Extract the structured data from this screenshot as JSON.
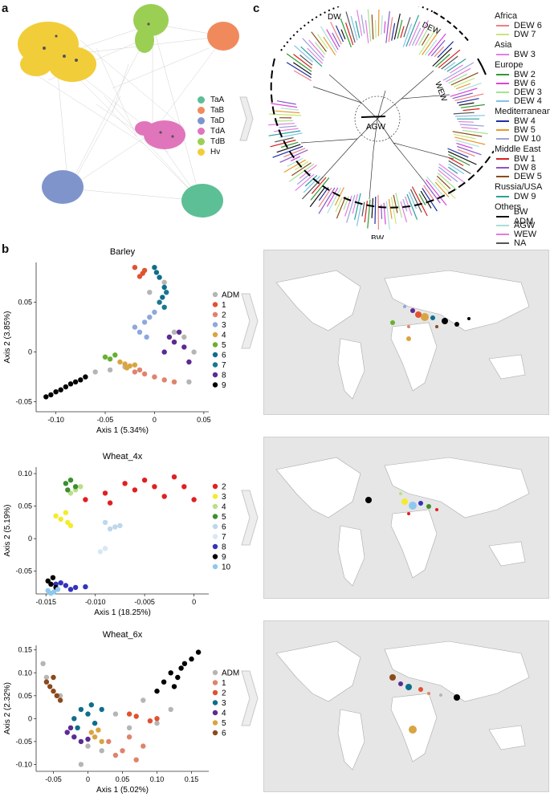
{
  "panel_labels": {
    "a": "a",
    "b": "b",
    "c": "c"
  },
  "network": {
    "legend": [
      {
        "label": "TaA",
        "color": "#5cbf95"
      },
      {
        "label": "TaB",
        "color": "#f08a5d"
      },
      {
        "label": "TaD",
        "color": "#8094cc"
      },
      {
        "label": "TdA",
        "color": "#e075bc"
      },
      {
        "label": "TdB",
        "color": "#9bcf54"
      },
      {
        "label": "Hv",
        "color": "#f2cd3a"
      }
    ]
  },
  "tree": {
    "arc_labels": {
      "dw": "DW",
      "dew": "DEW",
      "wew": "WEW",
      "agw": "AGW",
      "bw": "BW"
    },
    "legend_groups": [
      {
        "region": "Africa",
        "items": [
          {
            "label": "DEW 6",
            "color": "#f08080"
          },
          {
            "label": "DW 7",
            "color": "#c8e67a"
          }
        ]
      },
      {
        "region": "Asia",
        "items": [
          {
            "label": "BW 3",
            "color": "#e27fe8"
          }
        ]
      },
      {
        "region": "Europe",
        "items": [
          {
            "label": "BW 2",
            "color": "#2f9a2f"
          },
          {
            "label": "BW 6",
            "color": "#d946d9"
          },
          {
            "label": "DEW 3",
            "color": "#a5e38f"
          },
          {
            "label": "DEW 4",
            "color": "#7ec4e8"
          }
        ]
      },
      {
        "region": "Mediterranean",
        "items": [
          {
            "label": "BW 4",
            "color": "#1f2fa0"
          },
          {
            "label": "BW 5",
            "color": "#e89a2c"
          },
          {
            "label": "DW 10",
            "color": "#9ba3d6"
          }
        ]
      },
      {
        "region": "Middle East",
        "items": [
          {
            "label": "BW 1",
            "color": "#d62020"
          },
          {
            "label": "DW 8",
            "color": "#8a55c8"
          },
          {
            "label": "DEW 5",
            "color": "#8b4a1b"
          }
        ]
      },
      {
        "region": "Russia/USA",
        "items": [
          {
            "label": "DW 9",
            "color": "#2aa198"
          }
        ]
      },
      {
        "region": "Others",
        "items": [
          {
            "label": "BW ADM",
            "color": "#111111"
          },
          {
            "label": "AGW",
            "color": "#a8e0d8"
          },
          {
            "label": "WEW",
            "color": "#e67ae0"
          },
          {
            "label": "NA",
            "color": "#555555"
          }
        ]
      }
    ]
  },
  "chart_data": [
    {
      "type": "scatter",
      "title": "Barley",
      "xlabel": "Axis 1 (5.34%)",
      "ylabel": "Axis 2 (3.85%)",
      "xlim": [
        -0.12,
        0.055
      ],
      "ylim": [
        -0.06,
        0.09
      ],
      "xticks": [
        "-0.10",
        "-0.05",
        "0",
        "0.05"
      ],
      "xtick_values": [
        -0.1,
        -0.05,
        0,
        0.05
      ],
      "yticks": [
        "-0.05",
        "0",
        "0.05"
      ],
      "ytick_values": [
        -0.05,
        0,
        0.05
      ],
      "series": [
        {
          "name": "ADM",
          "color": "#b5b5b5",
          "x": [
            -0.06,
            -0.045,
            -0.03,
            -0.005,
            0.01,
            0.02,
            0.03,
            0.035,
            0.04
          ],
          "y": [
            -0.02,
            -0.018,
            -0.015,
            0.06,
            0.07,
            0.02,
            0.015,
            -0.03,
            0.0
          ]
        },
        {
          "name": "1",
          "color": "#e0522f",
          "x": [
            -0.02,
            -0.01,
            -0.015,
            -0.012
          ],
          "y": [
            0.085,
            0.082,
            0.076,
            0.079
          ]
        },
        {
          "name": "2",
          "color": "#e0836b",
          "x": [
            -0.02,
            -0.01,
            0.0,
            0.01,
            0.02,
            -0.015
          ],
          "y": [
            -0.02,
            -0.022,
            -0.025,
            -0.028,
            -0.03,
            -0.018
          ]
        },
        {
          "name": "3",
          "color": "#8ea8de",
          "x": [
            -0.015,
            -0.01,
            -0.005,
            0.0,
            -0.02,
            -0.008
          ],
          "y": [
            0.02,
            0.03,
            0.035,
            0.04,
            0.025,
            0.015
          ]
        },
        {
          "name": "4",
          "color": "#d9a441",
          "x": [
            -0.03,
            -0.025,
            -0.02,
            -0.035,
            -0.028
          ],
          "y": [
            -0.012,
            -0.014,
            -0.013,
            -0.01,
            -0.016
          ]
        },
        {
          "name": "5",
          "color": "#68b030",
          "x": [
            -0.05,
            -0.045,
            -0.04
          ],
          "y": [
            -0.005,
            -0.007,
            -0.003
          ]
        },
        {
          "name": "6",
          "color": "#0e6e8c",
          "x": [
            0.0,
            0.005,
            0.01,
            0.008,
            0.002
          ],
          "y": [
            0.085,
            0.075,
            0.065,
            0.055,
            0.08
          ]
        },
        {
          "name": "7",
          "color": "#17798f",
          "x": [
            0.005,
            0.01,
            0.012
          ],
          "y": [
            0.05,
            0.045,
            0.06
          ]
        },
        {
          "name": "8",
          "color": "#5c2a92",
          "x": [
            0.01,
            0.02,
            0.025,
            0.03,
            0.035,
            0.015
          ],
          "y": [
            0.0,
            0.01,
            0.02,
            0.005,
            -0.01,
            0.015
          ]
        },
        {
          "name": "9",
          "color": "#000000",
          "x": [
            -0.11,
            -0.1,
            -0.09,
            -0.08,
            -0.07,
            -0.085,
            -0.095,
            -0.105,
            -0.075
          ],
          "y": [
            -0.045,
            -0.04,
            -0.035,
            -0.03,
            -0.025,
            -0.032,
            -0.038,
            -0.043,
            -0.028
          ]
        }
      ]
    },
    {
      "type": "scatter",
      "title": "Wheat_4x",
      "xlabel": "Axis 1 (18.25%)",
      "ylabel": "Axis 2 (5.19%)",
      "xlim": [
        -0.016,
        0.0015
      ],
      "ylim": [
        -0.085,
        0.11
      ],
      "xticks": [
        "-0.015",
        "-0.010",
        "-0.005",
        "0"
      ],
      "xtick_values": [
        -0.015,
        -0.01,
        -0.005,
        0
      ],
      "yticks": [
        "-0.05",
        "0",
        "0.05",
        "0.10"
      ],
      "ytick_values": [
        -0.05,
        0,
        0.05,
        0.1
      ],
      "series": [
        {
          "name": "2",
          "color": "#e02020",
          "x": [
            -0.011,
            -0.009,
            -0.007,
            -0.005,
            -0.004,
            -0.002,
            -0.001,
            0.0,
            -0.006,
            -0.003,
            -0.0085
          ],
          "y": [
            0.06,
            0.07,
            0.085,
            0.09,
            0.08,
            0.095,
            0.08,
            0.06,
            0.075,
            0.065,
            0.055
          ]
        },
        {
          "name": "3",
          "color": "#f5eb2a",
          "x": [
            -0.0135,
            -0.013,
            -0.0125,
            -0.014,
            -0.0128
          ],
          "y": [
            0.03,
            0.04,
            0.02,
            0.035,
            0.025
          ]
        },
        {
          "name": "4",
          "color": "#b9e08a",
          "x": [
            -0.012,
            -0.0115,
            -0.0125
          ],
          "y": [
            0.075,
            0.08,
            0.07
          ]
        },
        {
          "name": "5",
          "color": "#3c8f2f",
          "x": [
            -0.013,
            -0.0125,
            -0.012,
            -0.0128
          ],
          "y": [
            0.085,
            0.09,
            0.08,
            0.075
          ]
        },
        {
          "name": "6",
          "color": "#bdd7ec",
          "x": [
            -0.009,
            -0.0085,
            -0.008,
            -0.0075
          ],
          "y": [
            0.025,
            0.015,
            0.018,
            0.02
          ]
        },
        {
          "name": "7",
          "color": "#d7e8f5",
          "x": [
            -0.0095,
            -0.009
          ],
          "y": [
            -0.02,
            -0.015
          ]
        },
        {
          "name": "8",
          "color": "#3333bb",
          "x": [
            -0.014,
            -0.013,
            -0.012,
            -0.011,
            -0.0135,
            -0.0125
          ],
          "y": [
            -0.07,
            -0.072,
            -0.075,
            -0.074,
            -0.068,
            -0.078
          ]
        },
        {
          "name": "9",
          "color": "#000000",
          "x": [
            -0.0148,
            -0.0145,
            -0.014,
            -0.0143
          ],
          "y": [
            -0.065,
            -0.07,
            -0.075,
            -0.06
          ]
        },
        {
          "name": "10",
          "color": "#8ec8ef",
          "x": [
            -0.0148,
            -0.0142,
            -0.0138,
            -0.0145
          ],
          "y": [
            -0.08,
            -0.082,
            -0.078,
            -0.084
          ]
        }
      ]
    },
    {
      "type": "scatter",
      "title": "Wheat_6x",
      "xlabel": "Axis 1 (5.02%)",
      "ylabel": "Axis 2 (2.32%)",
      "xlim": [
        -0.075,
        0.175
      ],
      "ylim": [
        -0.115,
        0.16
      ],
      "xticks": [
        "-0.05",
        "0",
        "0.05",
        "0.10",
        "0.15"
      ],
      "xtick_values": [
        -0.05,
        0,
        0.05,
        0.1,
        0.15
      ],
      "yticks": [
        "-0.10",
        "-0.05",
        "0",
        "0.05",
        "0.10",
        "0.15"
      ],
      "ytick_values": [
        -0.1,
        -0.05,
        0,
        0.05,
        0.1,
        0.15
      ],
      "series": [
        {
          "name": "ADM",
          "color": "#b5b5b5",
          "x": [
            -0.065,
            -0.06,
            -0.04,
            0.0,
            0.04,
            0.06,
            0.08,
            0.1,
            0.12,
            -0.01,
            0.02
          ],
          "y": [
            0.12,
            0.09,
            0.05,
            -0.06,
            0.01,
            -0.02,
            0.04,
            -0.01,
            0.02,
            -0.1,
            -0.07
          ]
        },
        {
          "name": "1",
          "color": "#e0836b",
          "x": [
            0.03,
            0.05,
            0.07,
            0.06,
            0.08,
            0.04
          ],
          "y": [
            -0.05,
            -0.07,
            -0.09,
            -0.04,
            -0.06,
            -0.08
          ]
        },
        {
          "name": "2",
          "color": "#e0522f",
          "x": [
            0.06,
            0.07,
            0.09,
            0.1
          ],
          "y": [
            0.01,
            0.005,
            -0.005,
            0.0
          ]
        },
        {
          "name": "3",
          "color": "#0e6e8c",
          "x": [
            -0.02,
            -0.01,
            0.0,
            0.01,
            0.02,
            -0.015,
            0.005
          ],
          "y": [
            0.0,
            0.02,
            0.01,
            -0.01,
            0.02,
            -0.02,
            0.03
          ]
        },
        {
          "name": "4",
          "color": "#5c2a92",
          "x": [
            -0.03,
            -0.02,
            -0.01,
            0.0,
            -0.025
          ],
          "y": [
            -0.03,
            -0.04,
            -0.05,
            -0.045,
            -0.02
          ]
        },
        {
          "name": "5",
          "color": "#d9a441",
          "x": [
            0.005,
            0.01,
            0.015,
            0.02
          ],
          "y": [
            -0.03,
            -0.04,
            -0.025,
            -0.05
          ]
        },
        {
          "name": "6",
          "color": "#8b4a1b",
          "x": [
            -0.06,
            -0.055,
            -0.05,
            -0.045,
            -0.04,
            -0.05
          ],
          "y": [
            0.08,
            0.07,
            0.06,
            0.05,
            0.04,
            0.09
          ]
        },
        {
          "name": "",
          "color": "#000000",
          "x": [
            0.1,
            0.11,
            0.12,
            0.13,
            0.14,
            0.15,
            0.16,
            0.125,
            0.135
          ],
          "y": [
            0.06,
            0.08,
            0.1,
            0.09,
            0.12,
            0.13,
            0.145,
            0.07,
            0.11
          ]
        }
      ]
    }
  ]
}
